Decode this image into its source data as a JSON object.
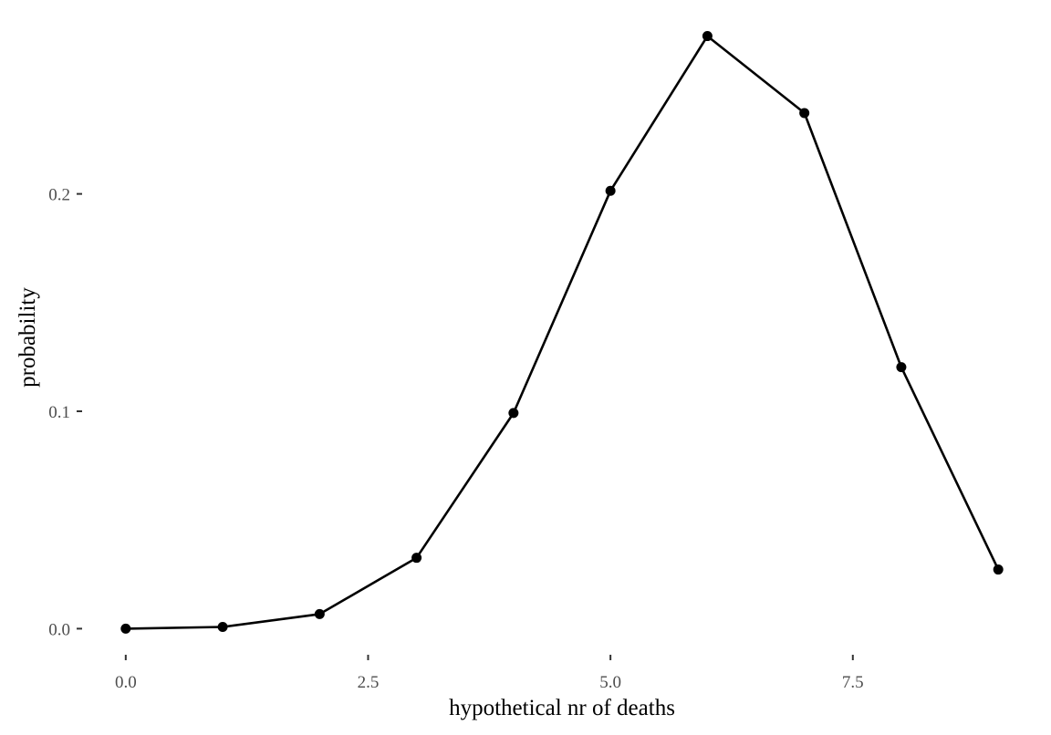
{
  "chart_data": {
    "type": "line",
    "markers": true,
    "title": "",
    "xlabel": "hypothetical nr of deaths",
    "ylabel": "probability",
    "x": [
      0,
      1,
      2,
      3,
      4,
      5,
      6,
      7,
      8,
      9
    ],
    "series": [
      {
        "values": [
          0.0,
          0.0008,
          0.0067,
          0.0326,
          0.0992,
          0.2014,
          0.2726,
          0.2372,
          0.1203,
          0.0272
        ]
      }
    ],
    "xlim": [
      -0.45,
      9.45
    ],
    "ylim": [
      -0.012,
      0.285
    ],
    "x_ticks": [
      0,
      2.5,
      5,
      7.5
    ],
    "x_tick_labels": [
      "0.0",
      "2.5",
      "5.0",
      "7.5"
    ],
    "y_ticks": [
      0,
      0.1,
      0.2
    ],
    "y_tick_labels": [
      "0.0",
      "0.1",
      "0.2"
    ],
    "grid": false,
    "legend": "none",
    "colors": {
      "line": "#000000",
      "points": "#000000",
      "tick_text": "#4d4d4d"
    }
  }
}
